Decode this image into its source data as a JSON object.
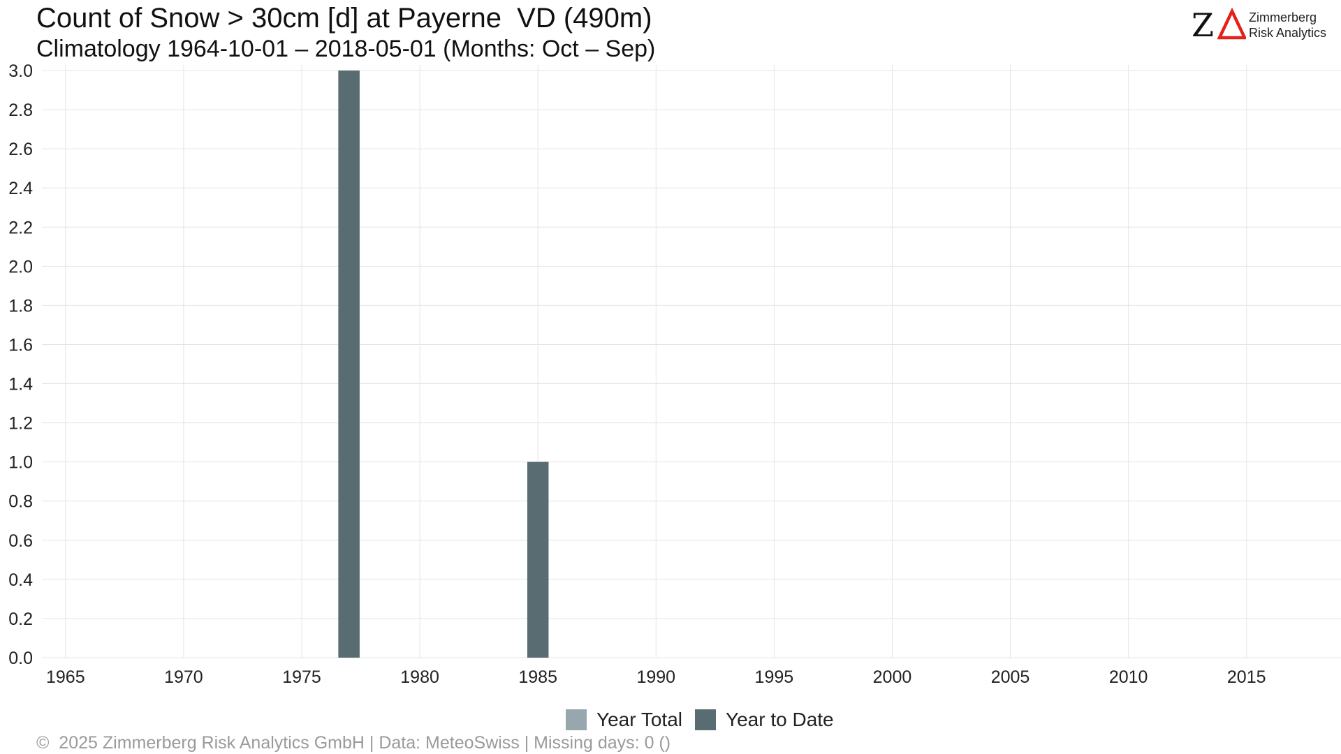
{
  "header": {
    "title": "Count of Snow > 30cm [d] at Payerne  VD (490m)",
    "subtitle": "Climatology 1964-10-01 – 2018-05-01 (Months: Oct – Sep)"
  },
  "logo": {
    "mark": "ZΔ",
    "line1": "Zimmerberg",
    "line2": "Risk Analytics",
    "accent_color": "#e32119"
  },
  "footer": {
    "text": "©  2025 Zimmerberg Risk Analytics GmbH | Data: MeteoSwiss | Missing days: 0 ()"
  },
  "legend": {
    "items": [
      {
        "label": "Year Total",
        "color": "#97a7ad"
      },
      {
        "label": "Year to Date",
        "color": "#596c71"
      }
    ]
  },
  "chart_data": {
    "type": "bar",
    "title": "Count of Snow > 30cm [d] at Payerne  VD (490m)",
    "subtitle": "Climatology 1964-10-01 – 2018-05-01 (Months: Oct – Sep)",
    "xlabel": "",
    "ylabel": "",
    "xlim": [
      1964,
      2019
    ],
    "ylim": [
      0,
      3.0
    ],
    "x_ticks": [
      1965,
      1970,
      1975,
      1980,
      1985,
      1990,
      1995,
      2000,
      2005,
      2010,
      2015
    ],
    "y_ticks": [
      "0.0",
      "0.2",
      "0.4",
      "0.6",
      "0.8",
      "1.0",
      "1.2",
      "1.4",
      "1.6",
      "1.8",
      "2.0",
      "2.2",
      "2.4",
      "2.6",
      "2.8",
      "3.0"
    ],
    "grid": true,
    "legend_position": "bottom",
    "series": [
      {
        "name": "Year Total",
        "color": "#97a7ad",
        "points": [
          {
            "x": 1977,
            "y": 3
          },
          {
            "x": 1985,
            "y": 1
          }
        ]
      },
      {
        "name": "Year to Date",
        "color": "#596c71",
        "points": [
          {
            "x": 1977,
            "y": 3
          },
          {
            "x": 1985,
            "y": 1
          }
        ]
      }
    ]
  }
}
